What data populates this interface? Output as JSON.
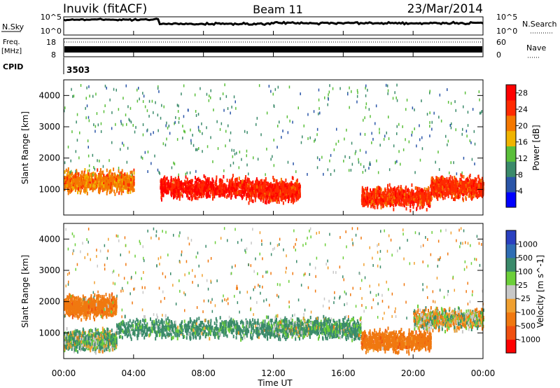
{
  "header": {
    "station": "Inuvik (fitACF)",
    "beam": "Beam 11",
    "date": "23/Mar/2014"
  },
  "params": {
    "nsky_label": "N.Sky",
    "nsky_ticks": [
      "10^5",
      "10^0"
    ],
    "nsearch_label": "N.Search",
    "nsearch_ticks": [
      "10^5",
      "10^0"
    ],
    "freq_label": "Freq.",
    "freq_unit": "[MHz]",
    "freq_ticks": [
      "18",
      "8"
    ],
    "nave_label": "Nave",
    "nave_ticks": [
      "60",
      "0"
    ],
    "cpid_label": "CPID",
    "cpid_value": "3503"
  },
  "colors": {
    "power": [
      "#0000ff",
      "#2a55a8",
      "#3a8a6a",
      "#5abf3a",
      "#f0b400",
      "#f47800",
      "#ff2a00",
      "#ff0000"
    ],
    "velocity": [
      "#2a40c0",
      "#2f6db4",
      "#3a8a6a",
      "#6ccf3a",
      "#c8c8c8",
      "#f0a030",
      "#f07810",
      "#f05010",
      "#ff0000"
    ],
    "velocity_colorbar": [
      "#ff0000",
      "#f05010",
      "#f07810",
      "#f0a030",
      "#c8c8c8",
      "#6ccf3a",
      "#3a8a6a",
      "#2f6db4",
      "#2a40c0"
    ]
  },
  "chart_data": [
    {
      "type": "heatmap",
      "name": "power",
      "ylabel": "Slant Range [km]",
      "xlabel": "Time UT",
      "x_ticks": [
        "00:00",
        "04:00",
        "08:00",
        "12:00",
        "16:00",
        "20:00",
        "00:00"
      ],
      "x_range_hours": [
        0,
        24
      ],
      "y_ticks": [
        1000,
        2000,
        3000,
        4000
      ],
      "y_range": [
        180,
        4500
      ],
      "colorbar": {
        "label": "Power [dB]",
        "ticks": [
          4,
          8,
          12,
          16,
          20,
          24,
          28
        ],
        "range": [
          0,
          30
        ]
      },
      "dominant_bands_km": [
        {
          "start_hour": 0,
          "end_hour": 4,
          "center": 1300,
          "value_db": 22
        },
        {
          "start_hour": 5.5,
          "end_hour": 10.5,
          "center": 1100,
          "value_db": 28
        },
        {
          "start_hour": 10.5,
          "end_hour": 13.5,
          "center": 1000,
          "value_db": 27
        },
        {
          "start_hour": 17,
          "end_hour": 21,
          "center": 800,
          "value_db": 26
        },
        {
          "start_hour": 21,
          "end_hour": 24,
          "center": 1100,
          "value_db": 26
        }
      ]
    },
    {
      "type": "heatmap",
      "name": "velocity",
      "ylabel": "Slant Range [km]",
      "xlabel": "Time UT",
      "x_ticks": [
        "00:00",
        "04:00",
        "08:00",
        "12:00",
        "16:00",
        "20:00",
        "00:00"
      ],
      "x_range_hours": [
        0,
        24
      ],
      "y_ticks": [
        1000,
        2000,
        3000,
        4000
      ],
      "y_range": [
        180,
        4500
      ],
      "colorbar": {
        "label": "Velocity [m s^-1]",
        "ticks": [
          "1000",
          "500",
          "100",
          "25",
          "-25",
          "-100",
          "-500",
          "-1000"
        ]
      },
      "dominant_bands_km": [
        {
          "start_hour": 0,
          "end_hour": 3,
          "center": 1900,
          "value": -300
        },
        {
          "start_hour": 0,
          "end_hour": 3,
          "center": 800,
          "value": 100
        },
        {
          "start_hour": 3,
          "end_hour": 12,
          "center": 1200,
          "value": 200
        },
        {
          "start_hour": 12,
          "end_hour": 17,
          "center": 1200,
          "value": 150
        },
        {
          "start_hour": 17,
          "end_hour": 21,
          "center": 800,
          "value": -300
        },
        {
          "start_hour": 20,
          "end_hour": 24,
          "center": 1500,
          "value": 0
        }
      ]
    }
  ]
}
